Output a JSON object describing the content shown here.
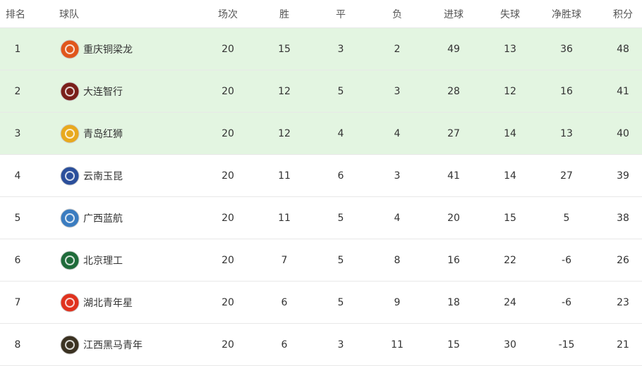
{
  "table": {
    "header": [
      "排名",
      "球队",
      "场次",
      "胜",
      "平",
      "负",
      "进球",
      "失球",
      "净胜球",
      "积分"
    ],
    "rows": [
      [
        1,
        "重庆铜梁龙",
        20,
        15,
        3,
        2,
        49,
        13,
        36,
        48
      ],
      [
        2,
        "大连智行",
        20,
        12,
        5,
        3,
        28,
        12,
        16,
        41
      ],
      [
        3,
        "青岛红狮",
        20,
        12,
        4,
        4,
        27,
        14,
        13,
        40
      ],
      [
        4,
        "云南玉昆",
        20,
        11,
        6,
        3,
        41,
        14,
        27,
        39
      ],
      [
        5,
        "广西蓝航",
        20,
        11,
        5,
        4,
        20,
        15,
        5,
        38
      ],
      [
        6,
        "北京理工",
        20,
        7,
        5,
        8,
        16,
        22,
        -6,
        26
      ],
      [
        7,
        "湖北青年星",
        20,
        6,
        5,
        9,
        18,
        24,
        -6,
        23
      ],
      [
        8,
        "江西黑马青年",
        20,
        6,
        3,
        11,
        15,
        30,
        -15,
        21
      ]
    ]
  }
}
